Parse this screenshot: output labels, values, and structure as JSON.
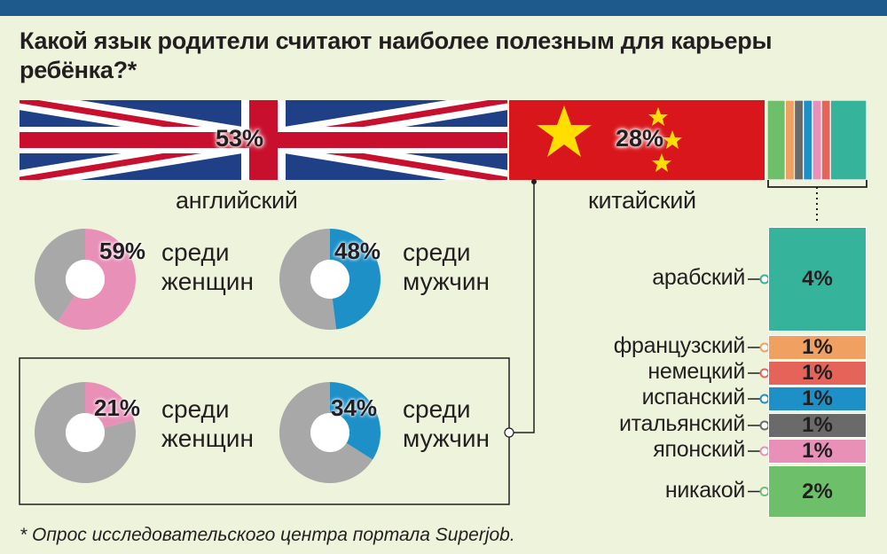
{
  "title": "Какой язык родители считают наиболее полезным для карьеры ребёнка?*",
  "footnote": "* Опрос исследовательского центра портала Superjob.",
  "colors": {
    "arabic": "#35b39b",
    "french": "#f0a060",
    "german": "#e5645a",
    "spanish": "#1e90c8",
    "italian": "#6a6a6a",
    "japanese": "#e890b8",
    "none": "#6ebf6a",
    "women": "#e890b8",
    "men": "#1e90c8",
    "rest": "#a8a8a8"
  },
  "chart_data": [
    {
      "type": "bar",
      "categories": [
        "английский",
        "китайский",
        "арабский",
        "французский",
        "немецкий",
        "испанский",
        "итальянский",
        "японский",
        "никакой"
      ],
      "values": [
        53,
        28,
        4,
        1,
        1,
        1,
        1,
        1,
        2
      ],
      "value_labels": [
        "53%",
        "28%",
        "4%",
        "1%",
        "1%",
        "1%",
        "1%",
        "1%",
        "2%"
      ],
      "unit": "%"
    },
    {
      "type": "pie",
      "language": "английский",
      "groups": [
        {
          "label": "среди женщин",
          "value": 59,
          "value_label": "59%"
        },
        {
          "label": "среди мужчин",
          "value": 48,
          "value_label": "48%"
        }
      ]
    },
    {
      "type": "pie",
      "language": "китайский",
      "groups": [
        {
          "label": "среди женщин",
          "value": 21,
          "value_label": "21%"
        },
        {
          "label": "среди мужчин",
          "value": 34,
          "value_label": "34%"
        }
      ]
    }
  ],
  "donut_words": {
    "among": "среди",
    "women": "женщин",
    "men": "мужчин"
  }
}
